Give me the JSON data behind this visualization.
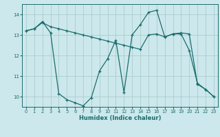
{
  "xlabel": "Humidex (Indice chaleur)",
  "bg_color": "#cce8ec",
  "grid_color": "#aacccc",
  "line_color": "#1a6b6b",
  "xlim": [
    -0.5,
    23.5
  ],
  "ylim": [
    9.5,
    14.5
  ],
  "yticks": [
    10,
    11,
    12,
    13,
    14
  ],
  "xticks": [
    0,
    1,
    2,
    3,
    4,
    5,
    6,
    7,
    8,
    9,
    10,
    11,
    12,
    13,
    14,
    15,
    16,
    17,
    18,
    19,
    20,
    21,
    22,
    23
  ],
  "line1_x": [
    0,
    1,
    2,
    3,
    4,
    5,
    6,
    7,
    8,
    9,
    10,
    11,
    12,
    13,
    14,
    15,
    16,
    17,
    18,
    19,
    20,
    21,
    22,
    23
  ],
  "line1_y": [
    13.2,
    13.3,
    13.6,
    13.4,
    13.3,
    13.2,
    13.1,
    13.0,
    12.9,
    12.8,
    12.7,
    12.6,
    12.5,
    12.4,
    12.3,
    13.0,
    13.05,
    12.9,
    13.05,
    13.05,
    12.25,
    10.65,
    10.35,
    10.0
  ],
  "line2_x": [
    0,
    1,
    2,
    3,
    4,
    5,
    6,
    7,
    8,
    9,
    10,
    11,
    12,
    13,
    14,
    15,
    16,
    17,
    18,
    19,
    20,
    21,
    22,
    23
  ],
  "line2_y": [
    13.2,
    13.3,
    13.65,
    13.1,
    10.15,
    9.85,
    9.7,
    9.55,
    9.95,
    11.25,
    11.85,
    12.75,
    10.2,
    13.0,
    13.5,
    14.1,
    14.2,
    12.9,
    13.05,
    13.1,
    13.05,
    10.6,
    10.35,
    10.0
  ]
}
